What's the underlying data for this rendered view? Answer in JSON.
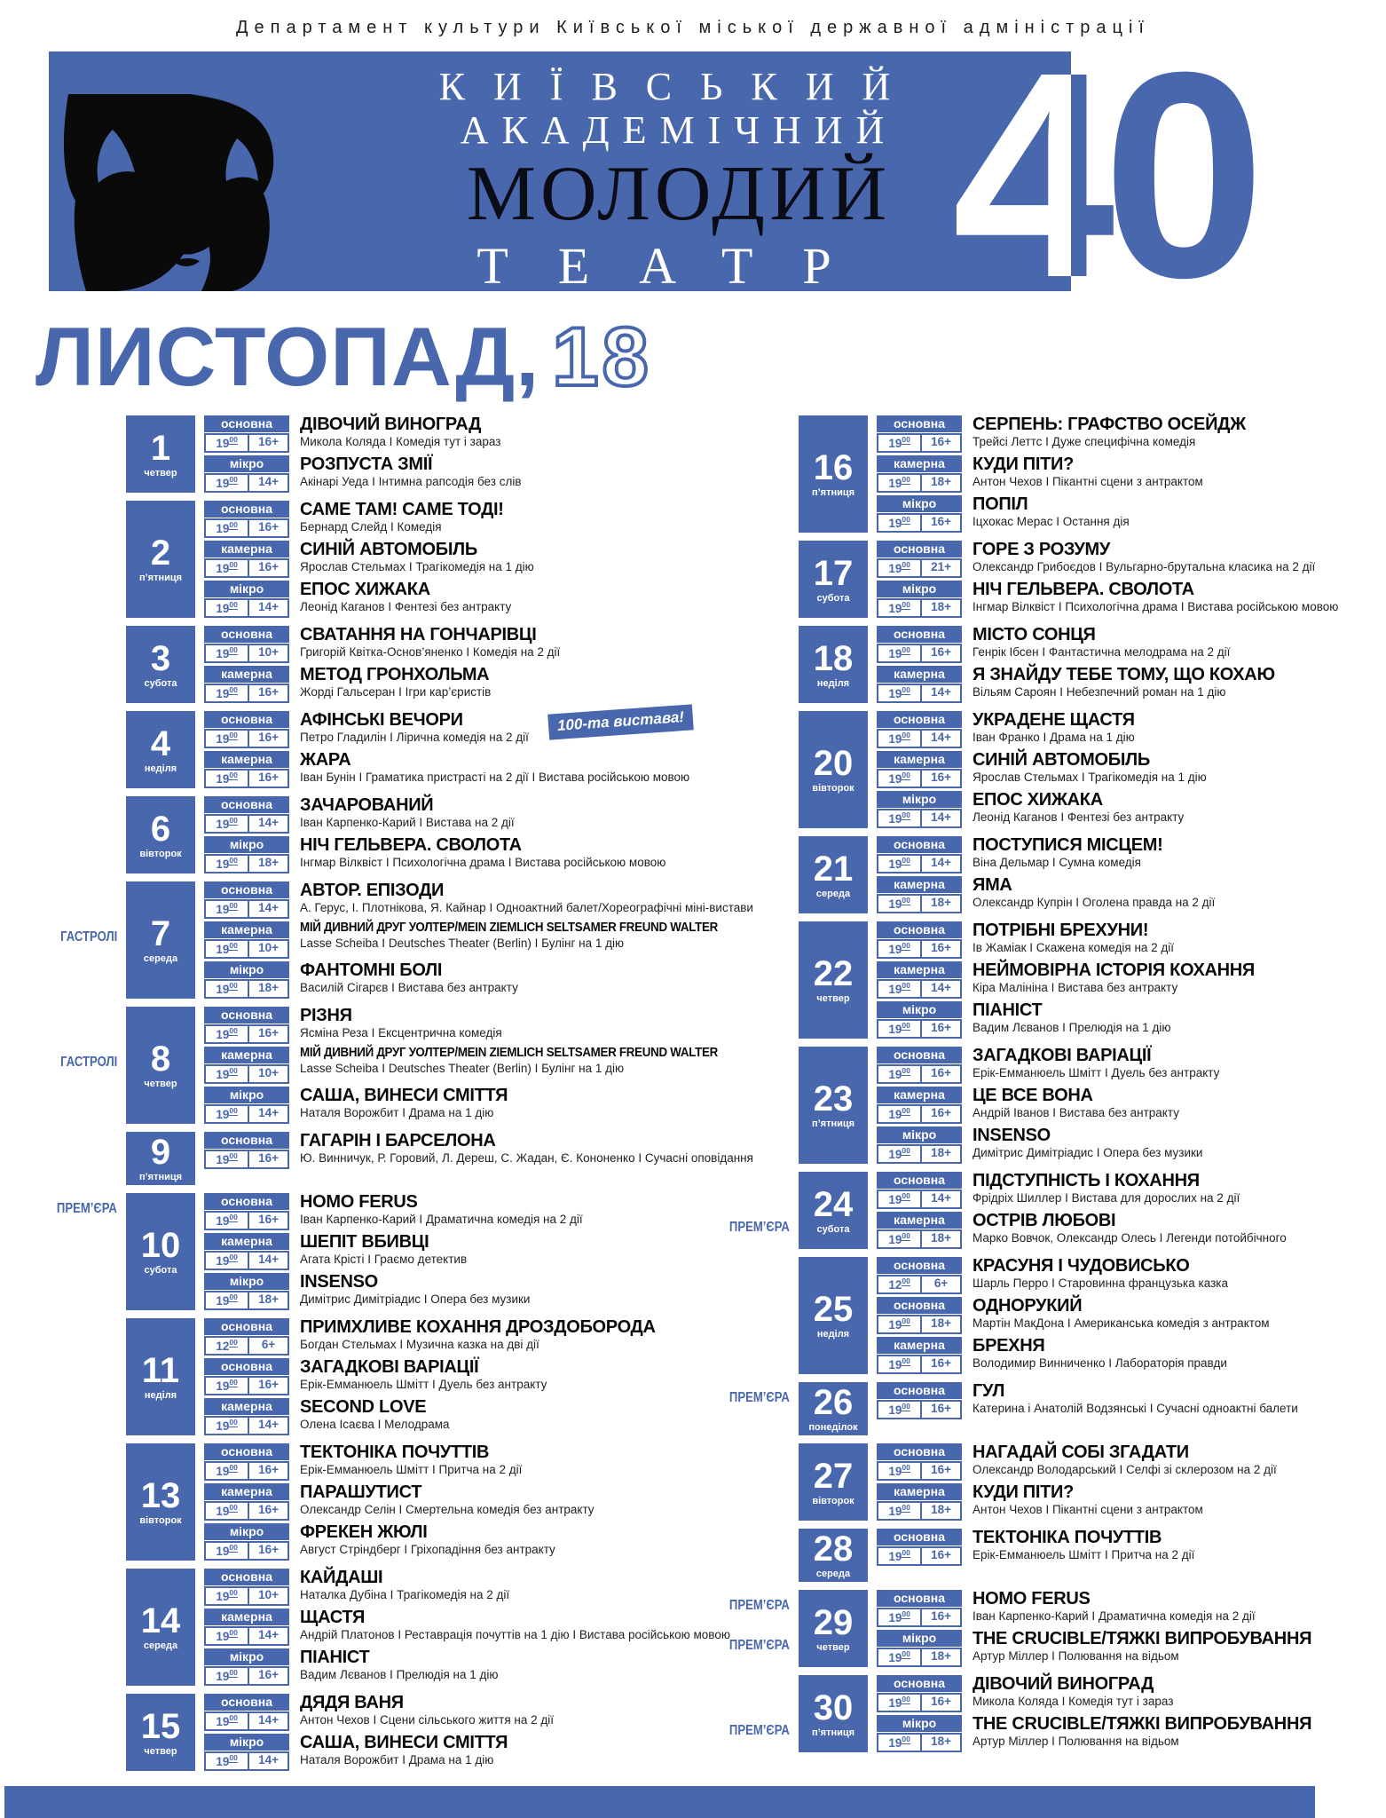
{
  "colors": {
    "primary_blue": "#4867ad",
    "text_black": "#0b0b0b",
    "banner_black": "#0c0c16"
  },
  "header": {
    "department": "Департамент культури Київської міської державної адміністрації",
    "line1": "КИЇВСЬКИЙ",
    "line2": "АКАДЕМІЧНИЙ",
    "line3": "МОЛОДИЙ",
    "line4": "ТЕАТР",
    "anniversary": "40",
    "month": "ЛИСТОПАД,",
    "year": "18"
  },
  "stages": [
    "основна",
    "камерна",
    "мікро"
  ],
  "columns": [
    [
      {
        "date": "1",
        "weekday": "четвер",
        "shows": [
          {
            "stage": "основна",
            "hour": "19",
            "min": "00",
            "age": "16+",
            "title": "ДІВОЧИЙ ВИНОГРАД",
            "desc": "Микола Коляда І Комедія тут і зараз"
          },
          {
            "stage": "мікро",
            "hour": "19",
            "min": "00",
            "age": "14+",
            "title": "РОЗПУСТА ЗМІЇ",
            "desc": "Акінарі Уеда І Інтимна рапсодія без слів"
          }
        ]
      },
      {
        "date": "2",
        "weekday": "п’ятниця",
        "shows": [
          {
            "stage": "основна",
            "hour": "19",
            "min": "00",
            "age": "16+",
            "title": "САМЕ ТАМ! САМЕ ТОДІ!",
            "desc": "Бернард Слейд І Комедія"
          },
          {
            "stage": "камерна",
            "hour": "19",
            "min": "00",
            "age": "16+",
            "title": "СИНІЙ АВТОМОБІЛЬ",
            "desc": "Ярослав Стельмах І Трагікомедія на 1 дію"
          },
          {
            "stage": "мікро",
            "hour": "19",
            "min": "00",
            "age": "14+",
            "title": "ЕПОС ХИЖАКА",
            "desc": "Леонід Каганов І Фентезі без антракту"
          }
        ]
      },
      {
        "date": "3",
        "weekday": "субота",
        "shows": [
          {
            "stage": "основна",
            "hour": "19",
            "min": "00",
            "age": "10+",
            "title": "СВАТАННЯ НА ГОНЧАРІВЦІ",
            "desc": "Григорій Квітка-Основ’яненко І Комедія на 2 дії"
          },
          {
            "stage": "камерна",
            "hour": "19",
            "min": "00",
            "age": "16+",
            "title": "МЕТОД ГРОНХОЛЬМА",
            "desc": "Жорді Гальсеран І Ігри кар’єристів"
          }
        ]
      },
      {
        "date": "4",
        "weekday": "неділя",
        "shows": [
          {
            "stage": "основна",
            "hour": "19",
            "min": "00",
            "age": "16+",
            "title": "АФІНСЬКІ ВЕЧОРИ",
            "desc": "Петро Гладилін І Лірична комедія на 2 дії",
            "badge": "100-та вистава!"
          },
          {
            "stage": "камерна",
            "hour": "19",
            "min": "00",
            "age": "16+",
            "title": "ЖАРА",
            "desc": "Іван Бунін І Граматика пристрасті на 2 дії І Вистава російською мовою"
          }
        ]
      },
      {
        "date": "6",
        "weekday": "вівторок",
        "shows": [
          {
            "stage": "основна",
            "hour": "19",
            "min": "00",
            "age": "14+",
            "title": "ЗАЧАРОВАНИЙ",
            "desc": "Іван Карпенко-Карий І Вистава на 2 дії"
          },
          {
            "stage": "мікро",
            "hour": "19",
            "min": "00",
            "age": "18+",
            "title": "НІЧ ГЕЛЬВЕРА. СВОЛОТА",
            "desc": "Інгмар Вілквіст І Психологічна драма І Вистава російською мовою"
          }
        ]
      },
      {
        "date": "7",
        "weekday": "середа",
        "shows": [
          {
            "stage": "основна",
            "hour": "19",
            "min": "00",
            "age": "14+",
            "title": "АВТОР. ЕПІЗОДИ",
            "desc": "А. Герус, І. Плотнікова, Я. Кайнар І Одноактний балет/Хореографічні міні-вистави"
          },
          {
            "stage": "камерна",
            "hour": "19",
            "min": "00",
            "age": "10+",
            "title": "МІЙ ДИВНИЙ ДРУГ УОЛТЕР/MEIN ZIEMLICH SELTSAMER FREUND WALTER",
            "desc": "Lasse Scheiba І Deutsches Theater (Berlin) І Булінг на 1 дію",
            "tag": "ГАСТРОЛІ"
          },
          {
            "stage": "мікро",
            "hour": "19",
            "min": "00",
            "age": "18+",
            "title": "ФАНТОМНІ БОЛІ",
            "desc": "Василій Сігарєв І Вистава без антракту"
          }
        ]
      },
      {
        "date": "8",
        "weekday": "четвер",
        "shows": [
          {
            "stage": "основна",
            "hour": "19",
            "min": "00",
            "age": "16+",
            "title": "РІЗНЯ",
            "desc": "Ясміна Реза І Ексцентрична комедія"
          },
          {
            "stage": "камерна",
            "hour": "19",
            "min": "00",
            "age": "10+",
            "title": "МІЙ ДИВНИЙ ДРУГ УОЛТЕР/MEIN ZIEMLICH SELTSAMER FREUND WALTER",
            "desc": "Lasse Scheiba І Deutsches Theater (Berlin) І Булінг на 1 дію",
            "tag": "ГАСТРОЛІ"
          },
          {
            "stage": "мікро",
            "hour": "19",
            "min": "00",
            "age": "14+",
            "title": "САША, ВИНЕСИ СМІТТЯ",
            "desc": "Наталя Ворожбит І Драма на 1 дію"
          }
        ]
      },
      {
        "date": "9",
        "weekday": "п’ятниця",
        "shows": [
          {
            "stage": "основна",
            "hour": "19",
            "min": "00",
            "age": "16+",
            "title": "ГАГАРІН І БАРСЕЛОНА",
            "desc": "Ю. Винничук, Р. Горовий, Л. Дереш, С. Жадан, Є. Кононенко І Сучасні оповідання"
          }
        ]
      },
      {
        "date": "10",
        "weekday": "субота",
        "shows": [
          {
            "stage": "основна",
            "hour": "19",
            "min": "00",
            "age": "16+",
            "title": "HOMO FERUS",
            "desc": "Іван Карпенко-Карий І Драматична комедія на 2 дії",
            "tag": "ПРЕМ’ЄРА"
          },
          {
            "stage": "камерна",
            "hour": "19",
            "min": "00",
            "age": "14+",
            "title": "ШЕПІТ ВБИВЦІ",
            "desc": "Агата Крісті І Граємо детектив"
          },
          {
            "stage": "мікро",
            "hour": "19",
            "min": "00",
            "age": "18+",
            "title": "INSENSO",
            "desc": "Димітрис Димітріадис І Опера без музики"
          }
        ]
      },
      {
        "date": "11",
        "weekday": "неділя",
        "shows": [
          {
            "stage": "основна",
            "hour": "12",
            "min": "00",
            "age": "6+",
            "title": "ПРИМХЛИВЕ КОХАННЯ ДРОЗДОБОРОДА",
            "desc": "Богдан Стельмах І Музична казка на дві дії"
          },
          {
            "stage": "основна",
            "hour": "19",
            "min": "00",
            "age": "16+",
            "title": "ЗАГАДКОВІ ВАРІАЦІЇ",
            "desc": "Ерік-Емманюель Шмітт І Дуель без антракту"
          },
          {
            "stage": "камерна",
            "hour": "19",
            "min": "00",
            "age": "14+",
            "title": "SECOND LOVE",
            "desc": "Олена Ісаєва І Мелодрама"
          }
        ]
      },
      {
        "date": "13",
        "weekday": "вівторок",
        "shows": [
          {
            "stage": "основна",
            "hour": "19",
            "min": "00",
            "age": "16+",
            "title": "ТЕКТОНІКА ПОЧУТТІВ",
            "desc": "Ерік-Емманюель Шмітт І Притча на 2 дії"
          },
          {
            "stage": "камерна",
            "hour": "19",
            "min": "00",
            "age": "16+",
            "title": "ПАРАШУТИСТ",
            "desc": "Олександр Селін І Смертельна комедія без антракту"
          },
          {
            "stage": "мікро",
            "hour": "19",
            "min": "00",
            "age": "16+",
            "title": "ФРЕКЕН ЖЮЛІ",
            "desc": "Август Стріндберг І Гріхопадіння без антракту"
          }
        ]
      },
      {
        "date": "14",
        "weekday": "середа",
        "shows": [
          {
            "stage": "основна",
            "hour": "19",
            "min": "00",
            "age": "10+",
            "title": "КАЙДАШІ",
            "desc": "Наталка Дубіна І Трагікомедія на 2 дії"
          },
          {
            "stage": "камерна",
            "hour": "19",
            "min": "00",
            "age": "14+",
            "title": "ЩАСТЯ",
            "desc": "Андрій Платонов І Реставрація почуттів на 1 дію І Вистава російською мовою"
          },
          {
            "stage": "мікро",
            "hour": "19",
            "min": "00",
            "age": "16+",
            "title": "ПІАНІСТ",
            "desc": "Вадим Лєванов І Прелюдія на 1 дію"
          }
        ]
      },
      {
        "date": "15",
        "weekday": "четвер",
        "shows": [
          {
            "stage": "основна",
            "hour": "19",
            "min": "00",
            "age": "14+",
            "title": "ДЯДЯ ВАНЯ",
            "desc": "Антон Чехов І Сцени сільського життя на 2 дії"
          },
          {
            "stage": "мікро",
            "hour": "19",
            "min": "00",
            "age": "14+",
            "title": "САША, ВИНЕСИ СМІТТЯ",
            "desc": "Наталя Ворожбит І Драма на 1 дію"
          }
        ]
      }
    ],
    [
      {
        "date": "16",
        "weekday": "п’ятниця",
        "shows": [
          {
            "stage": "основна",
            "hour": "19",
            "min": "00",
            "age": "16+",
            "title": "СЕРПЕНЬ: ГРАФСТВО ОСЕЙДЖ",
            "desc": "Трейсі Леттс І Дуже специфічна комедія"
          },
          {
            "stage": "камерна",
            "hour": "19",
            "min": "00",
            "age": "18+",
            "title": "КУДИ ПІТИ?",
            "desc": "Антон Чехов І Пікантні сцени з антрактом"
          },
          {
            "stage": "мікро",
            "hour": "19",
            "min": "00",
            "age": "16+",
            "title": "ПОПІЛ",
            "desc": "Іцхокас Мерас І Остання дія"
          }
        ]
      },
      {
        "date": "17",
        "weekday": "субота",
        "shows": [
          {
            "stage": "основна",
            "hour": "19",
            "min": "00",
            "age": "21+",
            "title": "ГОРЕ З РОЗУМУ",
            "desc": "Олександр Грибоєдов І Вульгарно-брутальна класика на 2 дії"
          },
          {
            "stage": "мікро",
            "hour": "19",
            "min": "00",
            "age": "18+",
            "title": "НІЧ ГЕЛЬВЕРА. СВОЛОТА",
            "desc": "Інгмар Вілквіст І Психологічна драма І Вистава російською мовою"
          }
        ]
      },
      {
        "date": "18",
        "weekday": "неділя",
        "shows": [
          {
            "stage": "основна",
            "hour": "19",
            "min": "00",
            "age": "16+",
            "title": "МІСТО СОНЦЯ",
            "desc": "Генрік Ібсен І Фантастична мелодрама на 2 дії"
          },
          {
            "stage": "камерна",
            "hour": "19",
            "min": "00",
            "age": "14+",
            "title": "Я ЗНАЙДУ ТЕБЕ ТОМУ, ЩО КОХАЮ",
            "desc": "Вільям Сароян І Небезпечний роман на 1 дію"
          }
        ]
      },
      {
        "date": "20",
        "weekday": "вівторок",
        "shows": [
          {
            "stage": "основна",
            "hour": "19",
            "min": "00",
            "age": "14+",
            "title": "УКРАДЕНЕ ЩАСТЯ",
            "desc": "Іван Франко І Драма на 1 дію"
          },
          {
            "stage": "камерна",
            "hour": "19",
            "min": "00",
            "age": "16+",
            "title": "СИНІЙ АВТОМОБІЛЬ",
            "desc": "Ярослав Стельмах І Трагікомедія на 1 дію"
          },
          {
            "stage": "мікро",
            "hour": "19",
            "min": "00",
            "age": "14+",
            "title": "ЕПОС ХИЖАКА",
            "desc": "Леонід Каганов І Фентезі без антракту"
          }
        ]
      },
      {
        "date": "21",
        "weekday": "середа",
        "shows": [
          {
            "stage": "основна",
            "hour": "19",
            "min": "00",
            "age": "14+",
            "title": "ПОСТУПИСЯ МІСЦЕМ!",
            "desc": "Віна Дельмар І Сумна комедія"
          },
          {
            "stage": "камерна",
            "hour": "19",
            "min": "00",
            "age": "18+",
            "title": "ЯМА",
            "desc": "Олександр Купрін І Оголена правда на 2 дії"
          }
        ]
      },
      {
        "date": "22",
        "weekday": "четвер",
        "shows": [
          {
            "stage": "основна",
            "hour": "19",
            "min": "00",
            "age": "16+",
            "title": "ПОТРІБНІ БРЕХУНИ!",
            "desc": "Ів Жаміак І Скажена комедія на 2 дії"
          },
          {
            "stage": "камерна",
            "hour": "19",
            "min": "00",
            "age": "14+",
            "title": "НЕЙМОВІРНА ІСТОРІЯ КОХАННЯ",
            "desc": "Кіра Малініна І Вистава без антракту"
          },
          {
            "stage": "мікро",
            "hour": "19",
            "min": "00",
            "age": "16+",
            "title": "ПІАНІСТ",
            "desc": "Вадим Лєванов І Прелюдія на 1 дію"
          }
        ]
      },
      {
        "date": "23",
        "weekday": "п’ятниця",
        "shows": [
          {
            "stage": "основна",
            "hour": "19",
            "min": "00",
            "age": "16+",
            "title": "ЗАГАДКОВІ ВАРІАЦІЇ",
            "desc": "Ерік-Емманюель Шмітт І Дуель без антракту"
          },
          {
            "stage": "камерна",
            "hour": "19",
            "min": "00",
            "age": "16+",
            "title": "ЦЕ ВСЕ ВОНА",
            "desc": "Андрій Іванов І Вистава без антракту"
          },
          {
            "stage": "мікро",
            "hour": "19",
            "min": "00",
            "age": "18+",
            "title": "INSENSO",
            "desc": "Димітрис Димітріадис І Опера без музики"
          }
        ]
      },
      {
        "date": "24",
        "weekday": "субота",
        "shows": [
          {
            "stage": "основна",
            "hour": "19",
            "min": "00",
            "age": "14+",
            "title": "ПІДСТУПНІСТЬ І КОХАННЯ",
            "desc": "Фрідріх Шиллер І Вистава для дорослих на 2 дії"
          },
          {
            "stage": "камерна",
            "hour": "19",
            "min": "00",
            "age": "18+",
            "title": "ОСТРІВ ЛЮБОВІ",
            "desc": "Марко Вовчок, Олександр Олесь І Легенди потойбічного",
            "tag": "ПРЕМ’ЄРА"
          }
        ]
      },
      {
        "date": "25",
        "weekday": "неділя",
        "shows": [
          {
            "stage": "основна",
            "hour": "12",
            "min": "00",
            "age": "6+",
            "title": "КРАСУНЯ І ЧУДОВИСЬКО",
            "desc": "Шарль Перро І Старовинна французька казка"
          },
          {
            "stage": "основна",
            "hour": "19",
            "min": "00",
            "age": "18+",
            "title": "ОДНОРУКИЙ",
            "desc": "Мартін МакДона І Американська комедія з антрактом"
          },
          {
            "stage": "камерна",
            "hour": "19",
            "min": "00",
            "age": "16+",
            "title": "БРЕХНЯ",
            "desc": "Володимир Винниченко І Лабораторія правди"
          }
        ]
      },
      {
        "date": "26",
        "weekday": "понеділок",
        "shows": [
          {
            "stage": "основна",
            "hour": "19",
            "min": "00",
            "age": "16+",
            "title": "ГУЛ",
            "desc": "Катерина і Анатолій Водзянські І Сучасні одноактні балети",
            "tag": "ПРЕМ’ЄРА"
          }
        ]
      },
      {
        "date": "27",
        "weekday": "вівторок",
        "shows": [
          {
            "stage": "основна",
            "hour": "19",
            "min": "00",
            "age": "16+",
            "title": "НАГАДАЙ СОБІ ЗГАДАТИ",
            "desc": "Олександр Володарський І Селфі зі склерозом на 2 дії"
          },
          {
            "stage": "камерна",
            "hour": "19",
            "min": "00",
            "age": "18+",
            "title": "КУДИ ПІТИ?",
            "desc": "Антон Чехов І Пікантні сцени з антрактом"
          }
        ]
      },
      {
        "date": "28",
        "weekday": "середа",
        "shows": [
          {
            "stage": "основна",
            "hour": "19",
            "min": "00",
            "age": "16+",
            "title": "ТЕКТОНІКА ПОЧУТТІВ",
            "desc": "Ерік-Емманюель Шмітт І Притча на 2 дії"
          }
        ]
      },
      {
        "date": "29",
        "weekday": "четвер",
        "shows": [
          {
            "stage": "основна",
            "hour": "19",
            "min": "00",
            "age": "16+",
            "title": "HOMO FERUS",
            "desc": "Іван Карпенко-Карий І Драматична комедія на 2 дії",
            "tag": "ПРЕМ’ЄРА"
          },
          {
            "stage": "мікро",
            "hour": "19",
            "min": "00",
            "age": "18+",
            "title": "THE CRUCIBLE/ТЯЖКІ ВИПРОБУВАННЯ",
            "desc": "Артур Міллер І Полювання на відьом",
            "tag": "ПРЕМ’ЄРА"
          }
        ]
      },
      {
        "date": "30",
        "weekday": "п’ятниця",
        "shows": [
          {
            "stage": "основна",
            "hour": "19",
            "min": "00",
            "age": "16+",
            "title": "ДІВОЧИЙ ВИНОГРАД",
            "desc": "Микола Коляда І Комедія тут і зараз"
          },
          {
            "stage": "мікро",
            "hour": "19",
            "min": "00",
            "age": "18+",
            "title": "THE CRUCIBLE/ТЯЖКІ ВИПРОБУВАННЯ",
            "desc": "Артур Міллер І Полювання на відьом",
            "tag": "ПРЕМ’ЄРА"
          }
        ]
      }
    ]
  ]
}
